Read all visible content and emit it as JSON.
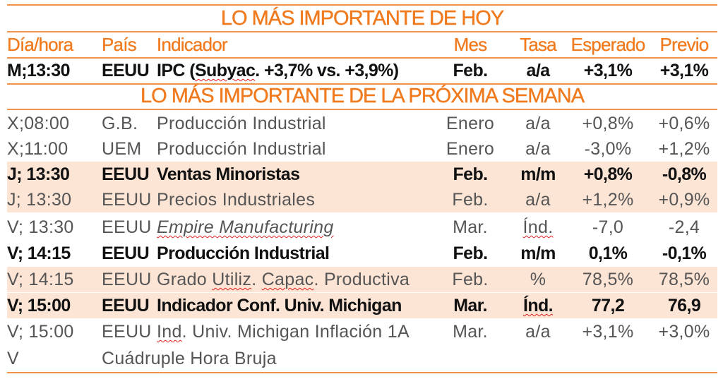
{
  "title_today": "LO MÁS IMPORTANTE DE HOY",
  "title_next_week": "LO MÁS IMPORTANTE DE LA PRÓXIMA SEMANA",
  "columns": {
    "dia_hora": "Día/hora",
    "pais": "País",
    "indicador": "Indicador",
    "mes": "Mes",
    "tasa": "Tasa",
    "esperado": "Esperado",
    "previo": "Previo"
  },
  "today": {
    "dia_hora": "M;13:30",
    "pais": "EEUU",
    "indicador_a": "IPC (",
    "indicador_b": "Subyac",
    "indicador_c": ". +3,7% vs. +3,9%)",
    "mes": "Feb.",
    "tasa": "a/a",
    "esperado": "+3,1%",
    "previo": "+3,1%"
  },
  "week": [
    {
      "dia_hora": "X;08:00",
      "pais": "G.B.",
      "indicador": "Producción Industrial",
      "mes": "Enero",
      "tasa": "a/a",
      "esperado": "+0,8%",
      "previo": "+0,6%"
    },
    {
      "dia_hora": "X;11:00",
      "pais": "UEM",
      "indicador": "Producción Industrial",
      "mes": "Enero",
      "tasa": "a/a",
      "esperado": "-3,0%",
      "previo": "+1,2%"
    },
    {
      "dia_hora": "J; 13:30",
      "pais": "EEUU",
      "indicador": "Ventas Minoristas",
      "mes": "Feb.",
      "tasa": "m/m",
      "esperado": "+0,8%",
      "previo": "-0,8%"
    },
    {
      "dia_hora": "J; 13:30",
      "pais": "EEUU",
      "indicador": "Precios Industriales",
      "mes": "Feb.",
      "tasa": "a/a",
      "esperado": "+1,2%",
      "previo": "+0,9%"
    },
    {
      "dia_hora": "V; 13:30",
      "pais": "EEUU",
      "indicador": "Empire Manufacturing",
      "mes": "Mar.",
      "tasa": "Índ.",
      "esperado": "-7,0",
      "previo": "-2,4"
    },
    {
      "dia_hora": "V; 14:15",
      "pais": "EEUU",
      "indicador": "Producción Industrial",
      "mes": "Feb.",
      "tasa": "m/m",
      "esperado": "0,1%",
      "previo": "-0,1%"
    },
    {
      "dia_hora": "V; 14:15",
      "pais": "EEUU",
      "indicador_a": "Grado ",
      "indicador_b": "Utiliz",
      "indicador_c": ". ",
      "indicador_d": "Capac",
      "indicador_e": ". Productiva",
      "mes": "Feb.",
      "tasa": "%",
      "esperado": "78,5%",
      "previo": "78,5%"
    },
    {
      "dia_hora": "V; 15:00",
      "pais": "EEUU",
      "indicador": "Indicador Conf. Univ. Michigan",
      "mes": "Mar.",
      "tasa": "Índ.",
      "esperado": "77,2",
      "previo": "76,9"
    },
    {
      "dia_hora": "V; 15:00",
      "pais": "EEUU",
      "indicador_a": "Ind",
      "indicador_b": ". Univ. Michigan Inflación 1A",
      "mes": "Mar.",
      "tasa": "a/a",
      "esperado": "+3,1%",
      "previo": "+3,0%"
    },
    {
      "dia_hora": "V",
      "pais": "",
      "indicador": "Cuádruple Hora Bruja",
      "mes": "",
      "tasa": "",
      "esperado": "",
      "previo": ""
    }
  ],
  "colors": {
    "accent": "#f07a1e",
    "rule": "#f0924a",
    "shade": "#fde5d6"
  }
}
